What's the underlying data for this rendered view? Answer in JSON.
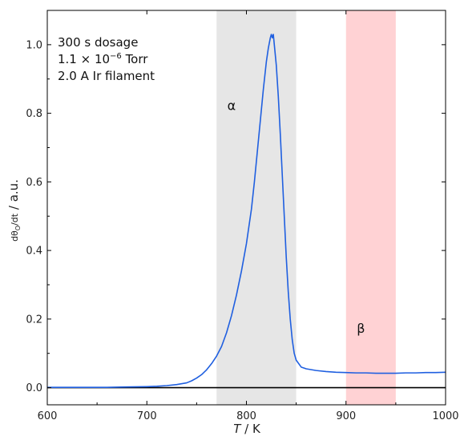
{
  "chart_data": {
    "type": "line",
    "xlabel_var": "T",
    "xlabel_sep": " / ",
    "xlabel_unit": "K",
    "ylabel_prefix": "dθ",
    "ylabel_sub": "O",
    "ylabel_den": "/dt",
    "ylabel_unit": " / a.u.",
    "xlim": [
      600,
      1000
    ],
    "ylim": [
      -0.05,
      1.1
    ],
    "xticks": [
      600,
      700,
      800,
      900,
      1000
    ],
    "yticks": [
      0.0,
      0.2,
      0.4,
      0.6,
      0.8,
      1.0
    ],
    "xtick_labels": [
      "600",
      "700",
      "800",
      "900",
      "1000"
    ],
    "ytick_labels": [
      "0.0",
      "0.2",
      "0.4",
      "0.6",
      "0.8",
      "1.0"
    ],
    "grid": false,
    "annotation": {
      "line1": "300 s dosage",
      "line2_pre": "1.1 × 10",
      "line2_exp": "−6",
      "line2_post": " Torr",
      "line3": "2.0 A Ir filament"
    },
    "regions": [
      {
        "label": "α",
        "x_start": 770,
        "x_end": 850,
        "color": "#e6e6e6",
        "label_x": 785,
        "label_y": 0.81
      },
      {
        "label": "β",
        "x_start": 900,
        "x_end": 950,
        "color": "#ffd2d4",
        "label_x": 915,
        "label_y": 0.16
      }
    ],
    "baseline": {
      "y": 0.0,
      "color": "#000000"
    },
    "series": [
      {
        "color": "#1f5fe0",
        "x": [
          600,
          620,
          640,
          660,
          680,
          700,
          710,
          720,
          730,
          740,
          745,
          750,
          755,
          760,
          765,
          770,
          775,
          780,
          785,
          790,
          795,
          800,
          805,
          808,
          811,
          814,
          817,
          820,
          822,
          824,
          825,
          826,
          827,
          828,
          830,
          832,
          834,
          836,
          838,
          840,
          842,
          844,
          846,
          848,
          850,
          855,
          860,
          870,
          880,
          890,
          900,
          910,
          920,
          930,
          940,
          950,
          960,
          970,
          980,
          990,
          1000
        ],
        "y": [
          0.001,
          0.001,
          0.001,
          0.001,
          0.002,
          0.003,
          0.004,
          0.006,
          0.009,
          0.014,
          0.02,
          0.028,
          0.038,
          0.052,
          0.07,
          0.092,
          0.12,
          0.16,
          0.21,
          0.27,
          0.34,
          0.42,
          0.52,
          0.6,
          0.69,
          0.78,
          0.87,
          0.95,
          0.99,
          1.02,
          1.03,
          1.02,
          1.03,
          1.0,
          0.94,
          0.85,
          0.74,
          0.62,
          0.5,
          0.38,
          0.28,
          0.2,
          0.14,
          0.1,
          0.08,
          0.06,
          0.055,
          0.05,
          0.047,
          0.045,
          0.044,
          0.043,
          0.043,
          0.042,
          0.042,
          0.042,
          0.043,
          0.043,
          0.044,
          0.044,
          0.045
        ]
      }
    ]
  }
}
